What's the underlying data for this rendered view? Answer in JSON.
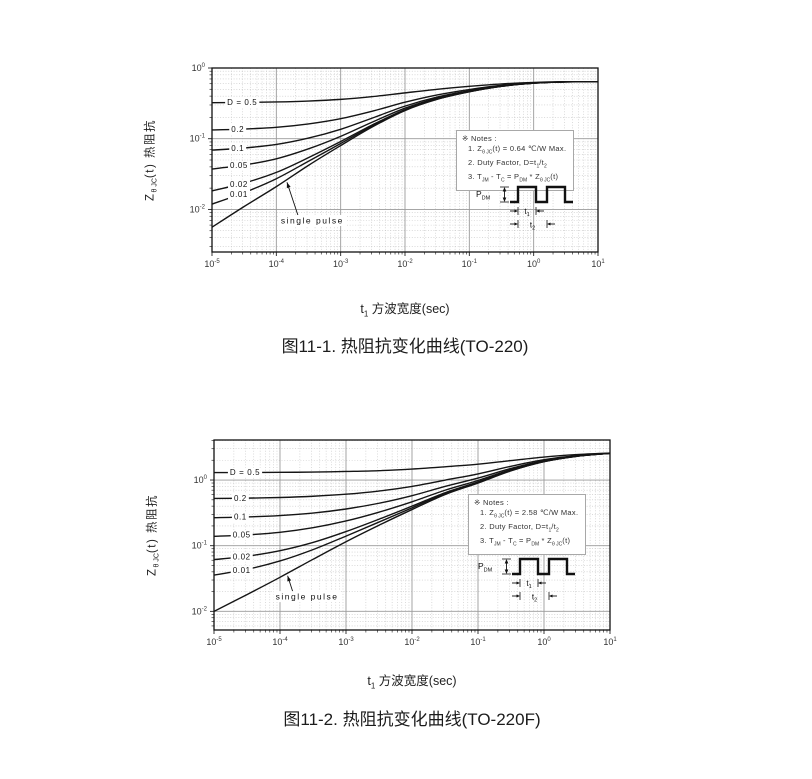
{
  "page": {
    "background": "#ffffff",
    "line_color": "#151515",
    "grid_major_color": "#9a9a9a",
    "grid_minor_color": "#c4c4c4"
  },
  "chart_data": [
    {
      "type": "line",
      "title": "图11-1. 热阻抗变化曲线(TO-220)",
      "package": "TO-220",
      "xlabel": "t1 方波宽度(sec)",
      "ylabel": "ZθJC(t) 热阻抗",
      "xscale": "log",
      "yscale": "log",
      "xlim": [
        1e-05,
        10
      ],
      "ylim": [
        0.0025,
        1.0
      ],
      "x_tick_exponents": [
        -5,
        -4,
        -3,
        -2,
        -1,
        0,
        1
      ],
      "y_tick_exponents": [
        0,
        -1,
        -2
      ],
      "rth_max_c_per_w": 0.64,
      "x": [
        1e-05,
        3.16e-05,
        0.0001,
        0.000316,
        0.001,
        0.00316,
        0.01,
        0.0316,
        0.1,
        0.316,
        1,
        3.16,
        10
      ],
      "series": [
        {
          "name": "D=0.5",
          "label": "D = 0.5",
          "label_x": -4.53,
          "values": [
            0.323,
            0.326,
            0.331,
            0.341,
            0.36,
            0.394,
            0.445,
            0.5,
            0.55,
            0.595,
            0.625,
            0.639,
            0.64
          ]
        },
        {
          "name": "D=0.2",
          "label": "0.2",
          "label_x": -4.6,
          "values": [
            0.133,
            0.137,
            0.145,
            0.162,
            0.192,
            0.246,
            0.328,
            0.416,
            0.496,
            0.568,
            0.616,
            0.638,
            0.64
          ]
        },
        {
          "name": "D=0.1",
          "label": "0.1",
          "label_x": -4.6,
          "values": [
            0.069,
            0.0739,
            0.0829,
            0.102,
            0.136,
            0.197,
            0.289,
            0.388,
            0.478,
            0.559,
            0.613,
            0.637,
            0.64
          ]
        },
        {
          "name": "D=0.05",
          "label": "0.05",
          "label_x": -4.58,
          "values": [
            0.0373,
            0.0425,
            0.052,
            0.0719,
            0.108,
            0.173,
            0.27,
            0.374,
            0.469,
            0.555,
            0.612,
            0.637,
            0.64
          ]
        },
        {
          "name": "D=0.02",
          "label": "0.02",
          "label_x": -4.58,
          "values": [
            0.0183,
            0.0236,
            0.0334,
            0.054,
            0.0912,
            0.158,
            0.258,
            0.366,
            0.464,
            0.552,
            0.611,
            0.636,
            0.64
          ]
        },
        {
          "name": "D=0.01",
          "label": "0.01",
          "label_x": -4.58,
          "values": [
            0.0119,
            0.0173,
            0.0272,
            0.048,
            0.0856,
            0.153,
            0.254,
            0.363,
            0.462,
            0.551,
            0.61,
            0.636,
            0.64
          ]
        },
        {
          "name": "single pulse",
          "label": "single pulse",
          "values": [
            0.0056,
            0.011,
            0.021,
            0.042,
            0.08,
            0.148,
            0.25,
            0.36,
            0.46,
            0.55,
            0.61,
            0.635,
            0.64
          ]
        }
      ],
      "labels": {
        "ylabel_pre": "Z",
        "ylabel_sub": "θ JC",
        "ylabel_post": "(t) 热阻抗",
        "xlabel_pre": "t",
        "xlabel_sub": "1",
        "xlabel_post": " 方波宽度(sec)"
      },
      "notes": {
        "header": "※  Notes :",
        "l1": {
          "a": "1. Z",
          "s1": "θ JC",
          "b": "(t) = 0.64 ℃/W Max."
        },
        "l2": {
          "a": "2. Duty Factor, D=t",
          "s1": "1",
          "b": "/t",
          "s2": "2"
        },
        "l3": {
          "a": "3. T",
          "s1": "JM",
          "b": " - T",
          "s2": "C",
          "c": " = P",
          "s3": "DM",
          "d": " * Z",
          "s4": "θ JC",
          "e": "(t)"
        }
      },
      "wave": {
        "pdm_pre": "P",
        "pdm_sub": "DM",
        "t_pre": "t",
        "t1_sub": "1",
        "t2_sub": "2"
      }
    },
    {
      "type": "line",
      "title": "图11-2. 热阻抗变化曲线(TO-220F)",
      "package": "TO-220F",
      "xlabel": "t1 方波宽度(sec)",
      "ylabel": "ZθJC(t) 热阻抗",
      "xscale": "log",
      "yscale": "log",
      "xlim": [
        1e-05,
        10
      ],
      "ylim": [
        0.0052,
        4.07
      ],
      "x_tick_exponents": [
        -5,
        -4,
        -3,
        -2,
        -1,
        0,
        1
      ],
      "y_tick_exponents": [
        0,
        -1,
        -2
      ],
      "rth_max_c_per_w": 2.58,
      "x": [
        1e-05,
        3.16e-05,
        0.0001,
        0.000316,
        0.001,
        0.00316,
        0.01,
        0.0316,
        0.1,
        0.316,
        1,
        3.16,
        10
      ],
      "series": [
        {
          "name": "D=0.5",
          "label": "D = 0.5",
          "label_x": -4.53,
          "values": [
            1.3,
            1.3,
            1.31,
            1.32,
            1.35,
            1.39,
            1.47,
            1.59,
            1.74,
            1.98,
            2.24,
            2.44,
            2.57
          ]
        },
        {
          "name": "D=0.2",
          "label": "0.2",
          "label_x": -4.6,
          "values": [
            0.524,
            0.53,
            0.542,
            0.566,
            0.608,
            0.68,
            0.8,
            0.996,
            1.24,
            1.62,
            2.04,
            2.36,
            2.56
          ]
        },
        {
          "name": "D=0.1",
          "label": "0.1",
          "label_x": -4.6,
          "values": [
            0.267,
            0.274,
            0.288,
            0.314,
            0.362,
            0.443,
            0.578,
            0.798,
            1.07,
            1.5,
            1.97,
            2.33,
            2.55
          ]
        },
        {
          "name": "D=0.05",
          "label": "0.05",
          "label_x": -4.58,
          "values": [
            0.139,
            0.146,
            0.16,
            0.188,
            0.238,
            0.324,
            0.466,
            0.699,
            0.984,
            1.44,
            1.93,
            2.31,
            2.55
          ]
        },
        {
          "name": "D=0.02",
          "label": "0.02",
          "label_x": -4.58,
          "values": [
            0.0614,
            0.0692,
            0.0839,
            0.112,
            0.164,
            0.253,
            0.4,
            0.64,
            0.934,
            1.4,
            1.91,
            2.31,
            2.55
          ]
        },
        {
          "name": "D=0.01",
          "label": "0.01",
          "label_x": -4.58,
          "values": [
            0.0357,
            0.0436,
            0.0585,
            0.0872,
            0.14,
            0.229,
            0.377,
            0.62,
            0.917,
            1.39,
            1.91,
            2.3,
            2.55
          ]
        },
        {
          "name": "single pulse",
          "label": "single pulse",
          "values": [
            0.01,
            0.018,
            0.033,
            0.062,
            0.115,
            0.205,
            0.355,
            0.6,
            0.9,
            1.38,
            1.9,
            2.3,
            2.55
          ]
        }
      ],
      "labels": {
        "ylabel_pre": "Z",
        "ylabel_sub": "θ JC",
        "ylabel_post": "(t) 热阻抗",
        "xlabel_pre": "t",
        "xlabel_sub": "1",
        "xlabel_post": " 方波宽度(sec)"
      },
      "notes": {
        "header": "※  Notes :",
        "l1": {
          "a": "1. Z",
          "s1": "θ JC",
          "b": "(t) = 2.58 ℃/W Max."
        },
        "l2": {
          "a": "2. Duty Factor, D=t",
          "s1": "1",
          "b": "/t",
          "s2": "2"
        },
        "l3": {
          "a": "3. T",
          "s1": "JM",
          "b": " - T",
          "s2": "C",
          "c": " = P",
          "s3": "DM",
          "d": " * Z",
          "s4": "θ JC",
          "e": "(t)"
        }
      },
      "wave": {
        "pdm_pre": "P",
        "pdm_sub": "DM",
        "t_pre": "t",
        "t1_sub": "1",
        "t2_sub": "2"
      }
    }
  ]
}
